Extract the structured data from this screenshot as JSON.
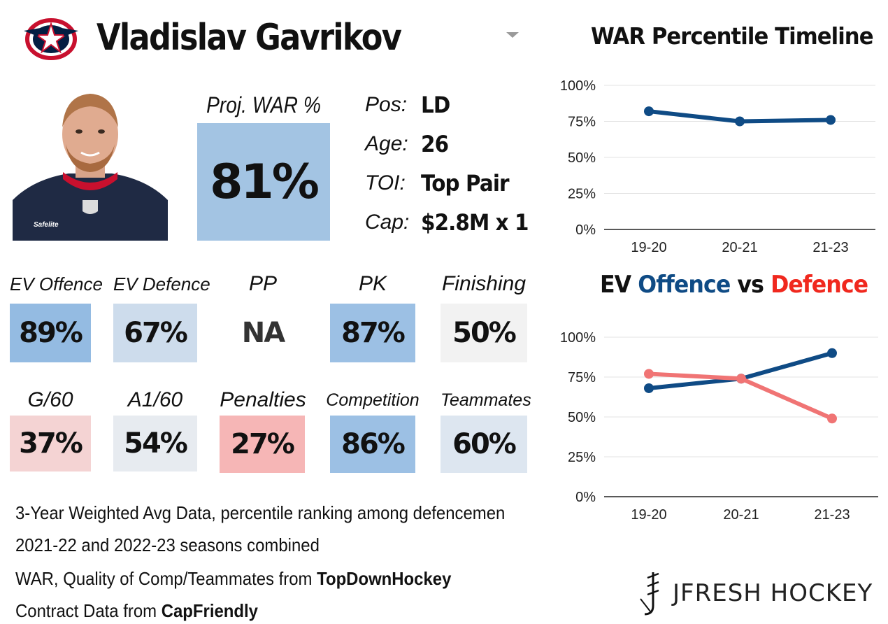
{
  "header": {
    "player_name": "Vladislav Gavrikov",
    "team_logo": "columbus-blue-jackets-logo",
    "dropdown_icon": "chevron-down-icon"
  },
  "photo": {
    "icon": "player-headshot"
  },
  "projection": {
    "label": "Proj. WAR %",
    "value": "81%",
    "color": "#a3c4e3"
  },
  "info": [
    {
      "label": "Pos:",
      "value": "LD"
    },
    {
      "label": "Age:",
      "value": "26"
    },
    {
      "label": "TOI:",
      "value": "Top Pair"
    },
    {
      "label": "Cap:",
      "value": "$2.8M x 1"
    }
  ],
  "stats_row1": [
    {
      "label": "EV Offence",
      "value": "89%",
      "color": "#94bbe2"
    },
    {
      "label": "EV Defence",
      "value": "67%",
      "color": "#cddcec"
    },
    {
      "label": "PP",
      "value": "NA",
      "color": "#ffffff"
    },
    {
      "label": "PK",
      "value": "87%",
      "color": "#9cc0e4"
    },
    {
      "label": "Finishing",
      "value": "50%",
      "color": "#f2f2f2"
    }
  ],
  "stats_row2": [
    {
      "label": "G/60",
      "value": "37%",
      "color": "#f4d3d3"
    },
    {
      "label": "A1/60",
      "value": "54%",
      "color": "#e7ebf0"
    },
    {
      "label": "Penalties",
      "value": "27%",
      "color": "#f6b6b6"
    },
    {
      "label": "Competition",
      "value": "86%",
      "color": "#9cc0e4"
    },
    {
      "label": "Teammates",
      "value": "60%",
      "color": "#dde6f0"
    }
  ],
  "notes": {
    "line1": "3-Year Weighted Avg Data, percentile ranking among defencemen",
    "line2": "2021-22 and 2022-23 seasons combined",
    "line3_prefix": "WAR, Quality of Comp/Teammates from ",
    "line3_bold": "TopDownHockey",
    "line4_prefix": "Contract Data from ",
    "line4_bold": "CapFriendly"
  },
  "branding": {
    "text": "JFRESH HOCKEY",
    "icon": "jfresh-logo-icon"
  },
  "colors": {
    "offence": "#0f4b85",
    "defence": "#f07474",
    "defence_title": "#f0281e",
    "grid": "#e3e3e3"
  },
  "chart_data": [
    {
      "type": "line",
      "title": "WAR Percentile Timeline",
      "categories": [
        "19-20",
        "20-21",
        "21-23"
      ],
      "series": [
        {
          "values": [
            82,
            75,
            76
          ],
          "color": "#0f4b85"
        }
      ],
      "ylim": [
        0,
        100
      ],
      "yticks": [
        "0%",
        "25%",
        "50%",
        "75%",
        "100%"
      ],
      "grid": true
    },
    {
      "type": "line",
      "title": {
        "part1": "EV ",
        "part2": "Offence",
        "part3": " vs ",
        "part4": "Defence"
      },
      "categories": [
        "19-20",
        "20-21",
        "21-23"
      ],
      "series": [
        {
          "name": "Offence",
          "values": [
            68,
            74,
            90
          ],
          "color": "#0f4b85"
        },
        {
          "name": "Defence",
          "values": [
            77,
            74,
            49
          ],
          "color": "#f07474"
        }
      ],
      "ylim": [
        0,
        100
      ],
      "yticks": [
        "0%",
        "25%",
        "50%",
        "75%",
        "100%"
      ],
      "grid": true
    }
  ]
}
